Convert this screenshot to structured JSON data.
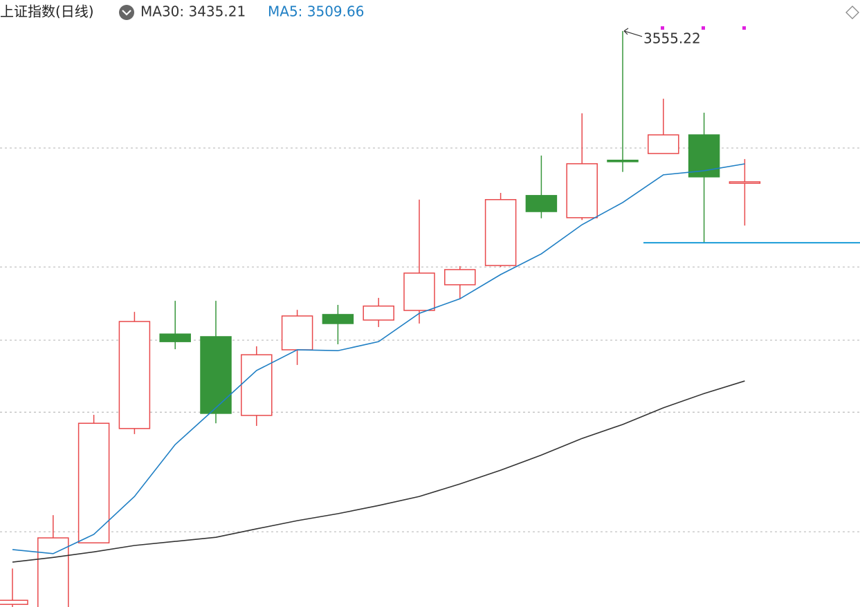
{
  "chart_data": {
    "type": "candlestick",
    "title": "上证指数(日线)",
    "categories": [
      null,
      null,
      null,
      null,
      null,
      null,
      null,
      null,
      null,
      null,
      null,
      null,
      null,
      null,
      null,
      null,
      null,
      null,
      null
    ],
    "open": [
      3358.6,
      3357.2,
      3379.7,
      3418.9,
      3451.3,
      3450.4,
      3423.4,
      3445.9,
      3458.0,
      3456.1,
      3459.4,
      3468.2,
      3474.8,
      3498.8,
      3491.2,
      3510.9,
      3513.2,
      3519.6,
      3503.0
    ],
    "high": [
      3370.9,
      3389.2,
      3423.6,
      3458.9,
      3462.7,
      3462.7,
      3447.1,
      3459.6,
      3461.3,
      3463.7,
      3497.4,
      3474.6,
      3499.7,
      3512.5,
      3527.0,
      3555.22,
      3532.0,
      3527.2,
      3511.3
    ],
    "low": [
      3357.7,
      3357.0,
      3379.7,
      3417.0,
      3446.1,
      3420.7,
      3419.8,
      3440.7,
      3447.8,
      3453.7,
      3454.9,
      3463.4,
      3474.3,
      3491.0,
      3490.4,
      3506.9,
      3513.2,
      3482.6,
      3488.5
    ],
    "close": [
      3360.0,
      3381.4,
      3420.7,
      3455.6,
      3448.7,
      3424.1,
      3444.2,
      3457.5,
      3454.9,
      3460.9,
      3472.2,
      3473.4,
      3497.4,
      3493.3,
      3509.7,
      3510.4,
      3519.6,
      3505.2,
      3503.5
    ],
    "up_color": "#e8484a",
    "down_color": "#36953a",
    "series": [
      {
        "name": "MA30",
        "legend_label": "MA30: 3435.21",
        "color": "#333333",
        "values": [
          3373.1,
          3374.7,
          3376.6,
          3378.8,
          3380.2,
          3381.6,
          3384.5,
          3387.3,
          3389.7,
          3392.5,
          3395.6,
          3399.9,
          3404.6,
          3409.8,
          3415.5,
          3420.3,
          3426.0,
          3430.9,
          3435.21
        ]
      },
      {
        "name": "MA5",
        "legend_label": "MA5: 3509.66",
        "color": "#1f7fc4",
        "values": [
          3377.4,
          3376.0,
          3382.6,
          3395.6,
          3413.4,
          3426.0,
          3438.8,
          3445.9,
          3445.6,
          3448.7,
          3458.4,
          3463.4,
          3471.7,
          3478.8,
          3488.8,
          3496.4,
          3505.9,
          3507.3,
          3509.66
        ]
      }
    ],
    "ylim": [
      3357.7,
      3565.85
    ],
    "grid_levels": [
      3515.1,
      3474.3,
      3449.2,
      3424.5,
      3383.5
    ],
    "grid": true,
    "support_line": {
      "value": 3482.6,
      "color": "#1a9bd7"
    },
    "high_annotation_index": 15
  }
}
